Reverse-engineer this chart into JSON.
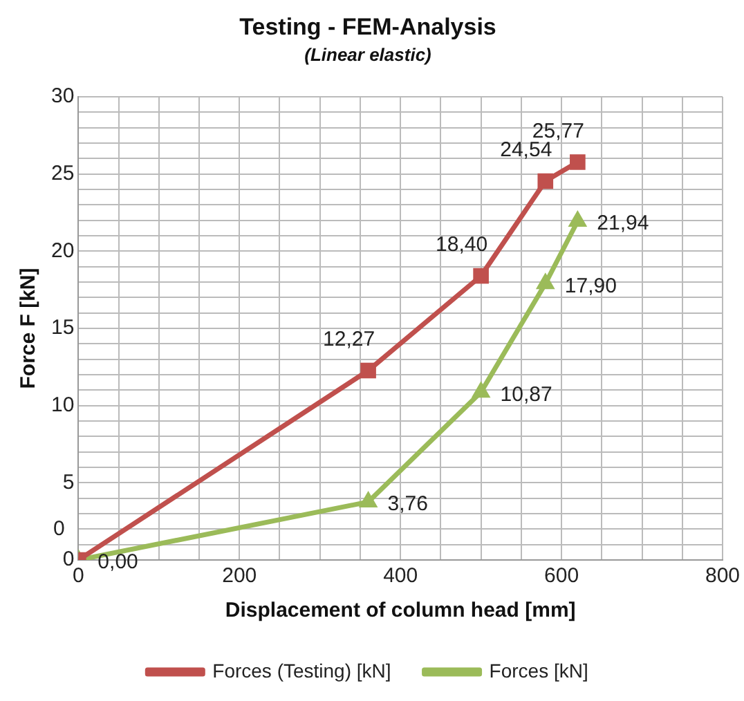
{
  "chart_data": {
    "type": "line",
    "title": "Testing - FEM-Analysis",
    "subtitle": "(Linear elastic)",
    "xlabel": "Displacement of column head [mm]",
    "ylabel": "Force F [kN]",
    "x": [
      0,
      360,
      500,
      580,
      620
    ],
    "series": [
      {
        "name": "Forces (Testing) [kN]",
        "color": "#c0504d",
        "marker": "square",
        "values": [
          0,
          12.27,
          18.4,
          24.54,
          25.77
        ],
        "value_labels": [
          "0",
          "12,27",
          "18,40",
          "24,54",
          "25,77"
        ]
      },
      {
        "name": "Forces [kN]",
        "color": "#9bbb59",
        "marker": "triangle",
        "values": [
          0,
          3.76,
          10.87,
          17.9,
          21.94
        ],
        "value_labels": [
          "0,00",
          "3,76",
          "10,87",
          "17,90",
          "21,94"
        ]
      }
    ],
    "xlim": [
      0,
      800
    ],
    "xticks": [
      0,
      {
        "value": 50,
        "label": null
      },
      {
        "value": 100,
        "label": null
      },
      {
        "value": 150,
        "label": null
      },
      200,
      {
        "value": 250,
        "label": null
      },
      {
        "value": 300,
        "label": null
      },
      {
        "value": 350,
        "label": null
      },
      400,
      {
        "value": 450,
        "label": null
      },
      {
        "value": 500,
        "label": null
      },
      {
        "value": 550,
        "label": null
      },
      600,
      {
        "value": 650,
        "label": null
      },
      {
        "value": 700,
        "label": null
      },
      {
        "value": 750,
        "label": null
      },
      800
    ],
    "ylim": [
      0,
      30
    ],
    "yticks": [
      0,
      {
        "value": 1,
        "label": null
      },
      {
        "value": 2,
        "label": null
      },
      {
        "value": 3,
        "label": null
      },
      {
        "value": 4,
        "label": null
      },
      5,
      {
        "value": 6,
        "label": null
      },
      {
        "value": 7,
        "label": null
      },
      {
        "value": 8,
        "label": null
      },
      {
        "value": 9,
        "label": null
      },
      10,
      {
        "value": 11,
        "label": null
      },
      {
        "value": 12,
        "label": null
      },
      {
        "value": 13,
        "label": null
      },
      {
        "value": 14,
        "label": null
      },
      15,
      {
        "value": 16,
        "label": null
      },
      {
        "value": 17,
        "label": null
      },
      {
        "value": 18,
        "label": null
      },
      {
        "value": 19,
        "label": null
      },
      20,
      {
        "value": 21,
        "label": null
      },
      {
        "value": 22,
        "label": null
      },
      {
        "value": 23,
        "label": null
      },
      {
        "value": 24,
        "label": null
      },
      25,
      {
        "value": 26,
        "label": null
      },
      {
        "value": 27,
        "label": null
      },
      {
        "value": 28,
        "label": null
      },
      {
        "value": 29,
        "label": null
      },
      30
    ],
    "grid": true,
    "legend": "bottom",
    "line_style": "solid"
  }
}
